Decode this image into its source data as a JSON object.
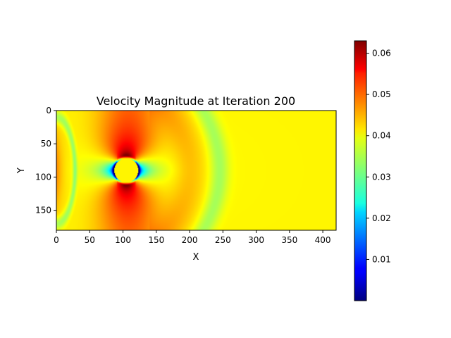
{
  "chart_data": {
    "type": "heatmap",
    "title": "Velocity Magnitude at Iteration 200",
    "xlabel": "X",
    "ylabel": "Y",
    "xlim": [
      0,
      420
    ],
    "ylim": [
      180,
      0
    ],
    "y_axis_inverted": true,
    "xticks": [
      0,
      50,
      100,
      150,
      200,
      250,
      300,
      350,
      400
    ],
    "yticks": [
      0,
      50,
      100,
      150
    ],
    "colormap": "jet",
    "colorbar": {
      "vmin": 0.0,
      "vmax": 0.063,
      "ticks": [
        0.01,
        0.02,
        0.03,
        0.04,
        0.05,
        0.06
      ],
      "tick_labels": [
        "0.01",
        "0.02",
        "0.03",
        "0.04",
        "0.05",
        "0.06"
      ],
      "placement": "right"
    },
    "field": {
      "free_stream": 0.04,
      "obstacle": {
        "shape": "circle",
        "center": [
          105,
          90
        ],
        "radius": 18,
        "value": 0.04
      },
      "features": [
        {
          "name": "upper high-speed lobe",
          "center": [
            103,
            56
          ],
          "value": 0.062
        },
        {
          "name": "lower high-speed lobe",
          "center": [
            103,
            122
          ],
          "value": 0.062
        },
        {
          "name": "upstream stagnation",
          "center": [
            80,
            90
          ],
          "value": 0.004
        },
        {
          "name": "downstream stagnation",
          "center": [
            130,
            90
          ],
          "value": 0.004
        },
        {
          "name": "inlet layer",
          "x": 0,
          "value": 0.035
        },
        {
          "name": "wave front",
          "x_at_centerline": 250,
          "value": 0.03
        }
      ]
    }
  }
}
